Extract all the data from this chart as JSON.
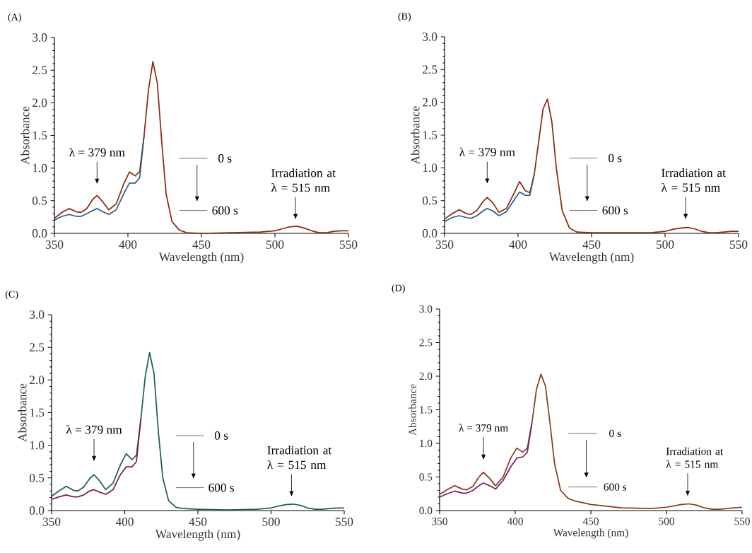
{
  "chart_data": [
    {
      "type": "line",
      "title": "(A)",
      "xlabel": "Wavelength (nm)",
      "ylabel": "Absorbance",
      "x": [
        350,
        355,
        360,
        365,
        368,
        372,
        376,
        379,
        383,
        387,
        392,
        397,
        401,
        405,
        408,
        411,
        414,
        417,
        420,
        423,
        426,
        430,
        435,
        440,
        450,
        470,
        490,
        500,
        505,
        510,
        515,
        520,
        525,
        530,
        535,
        540,
        545,
        550
      ],
      "series": [
        {
          "color": "#8b2a0e",
          "values": [
            0.23,
            0.32,
            0.38,
            0.33,
            0.32,
            0.38,
            0.52,
            0.58,
            0.48,
            0.36,
            0.45,
            0.75,
            0.94,
            0.88,
            0.95,
            1.5,
            2.2,
            2.63,
            2.3,
            1.4,
            0.6,
            0.18,
            0.05,
            0.01,
            0.0,
            0.01,
            0.02,
            0.04,
            0.07,
            0.1,
            0.11,
            0.08,
            0.04,
            0.01,
            0.01,
            0.03,
            0.04,
            0.04
          ]
        },
        {
          "color": "#2e5e7e",
          "values": [
            0.2,
            0.26,
            0.29,
            0.26,
            0.26,
            0.3,
            0.35,
            0.38,
            0.33,
            0.29,
            0.36,
            0.6,
            0.77,
            0.77,
            0.85,
            1.5,
            null,
            null,
            null,
            null,
            null,
            null,
            null,
            null,
            null,
            null,
            null,
            null,
            null,
            null,
            null,
            null,
            null,
            null,
            null,
            null,
            null,
            null
          ]
        }
      ],
      "xlim": [
        350,
        550
      ],
      "ylim": [
        0,
        3
      ],
      "xticks": [
        350,
        400,
        450,
        500,
        550
      ],
      "yticks": [
        {
          "value": 0,
          "label": "0.0"
        },
        {
          "value": 0.5,
          "label": "0.5"
        },
        {
          "value": 1,
          "label": "1.0"
        },
        {
          "value": 1.5,
          "label": "1.5"
        },
        {
          "value": 2,
          "label": "2.0"
        },
        {
          "value": 2.5,
          "label": "2.5"
        },
        {
          "value": 3,
          "label": "3.0"
        }
      ],
      "annotations": [
        "λ = 379 nm",
        "0 s",
        "600 s",
        "Irradiation at λ = 515 nm"
      ]
    },
    {
      "type": "line",
      "title": "(B)",
      "xlabel": "Wavelength (nm)",
      "ylabel": "Absorbance",
      "x": [
        350,
        355,
        360,
        365,
        368,
        372,
        376,
        379,
        383,
        387,
        392,
        397,
        401,
        405,
        408,
        411,
        414,
        417,
        420,
        423,
        426,
        430,
        435,
        440,
        450,
        470,
        490,
        500,
        505,
        510,
        515,
        520,
        525,
        530,
        535,
        540,
        545,
        550
      ],
      "series": [
        {
          "color": "#8b2a0e",
          "values": [
            0.22,
            0.3,
            0.36,
            0.3,
            0.29,
            0.35,
            0.48,
            0.55,
            0.46,
            0.32,
            0.38,
            0.6,
            0.79,
            0.65,
            0.62,
            0.9,
            1.4,
            1.9,
            2.05,
            1.7,
            1.0,
            0.35,
            0.08,
            0.02,
            0.01,
            0.01,
            0.01,
            0.03,
            0.06,
            0.08,
            0.09,
            0.07,
            0.03,
            0.01,
            0.01,
            0.02,
            0.03,
            0.03
          ]
        },
        {
          "color": "#2e5e7e",
          "values": [
            0.18,
            0.24,
            0.27,
            0.24,
            0.23,
            0.27,
            0.34,
            0.38,
            0.34,
            0.27,
            0.33,
            0.5,
            0.63,
            0.58,
            0.58,
            0.9,
            null,
            null,
            null,
            null,
            null,
            null,
            null,
            null,
            null,
            null,
            null,
            null,
            null,
            null,
            null,
            null,
            null,
            null,
            null,
            null,
            null,
            null
          ]
        }
      ],
      "xlim": [
        350,
        550
      ],
      "ylim": [
        0,
        3
      ],
      "xticks": [
        350,
        400,
        450,
        500,
        550
      ],
      "yticks": [
        {
          "value": 0,
          "label": "0.0"
        },
        {
          "value": 0.5,
          "label": "0.5"
        },
        {
          "value": 1,
          "label": "1.0"
        },
        {
          "value": 1.5,
          "label": "1.5"
        },
        {
          "value": 2,
          "label": "2.0"
        },
        {
          "value": 2.5,
          "label": "2.5"
        },
        {
          "value": 3,
          "label": "3.0"
        }
      ],
      "annotations": [
        "λ = 379 nm",
        "0 s",
        "600 s",
        "Irradiation at λ = 515 nm"
      ]
    },
    {
      "type": "line",
      "title": "(C)",
      "xlabel": "Wavelength (nm)",
      "ylabel": "Absorbance",
      "x": [
        350,
        355,
        360,
        365,
        368,
        372,
        376,
        379,
        383,
        387,
        392,
        397,
        401,
        405,
        408,
        411,
        414,
        417,
        420,
        423,
        426,
        430,
        435,
        440,
        450,
        470,
        490,
        500,
        505,
        510,
        515,
        520,
        525,
        530,
        535,
        540,
        545,
        550
      ],
      "series": [
        {
          "color": "#1f5f4f",
          "values": [
            0.22,
            0.3,
            0.37,
            0.31,
            0.3,
            0.36,
            0.49,
            0.55,
            0.45,
            0.32,
            0.42,
            0.7,
            0.87,
            0.78,
            0.85,
            1.4,
            2.05,
            2.42,
            2.1,
            1.2,
            0.5,
            0.15,
            0.05,
            0.03,
            0.02,
            0.01,
            0.02,
            0.04,
            0.07,
            0.09,
            0.1,
            0.08,
            0.04,
            0.02,
            0.02,
            0.03,
            0.04,
            0.04
          ]
        },
        {
          "color": "#7a1f4f",
          "values": [
            0.17,
            0.21,
            0.24,
            0.21,
            0.21,
            0.24,
            0.3,
            0.32,
            0.28,
            0.25,
            0.32,
            0.55,
            0.67,
            0.67,
            0.75,
            1.4,
            null,
            null,
            null,
            null,
            null,
            null,
            null,
            null,
            null,
            null,
            null,
            null,
            null,
            null,
            null,
            null,
            null,
            null,
            null,
            null,
            null,
            null
          ]
        }
      ],
      "xlim": [
        350,
        550
      ],
      "ylim": [
        0,
        3
      ],
      "xticks": [
        350,
        400,
        450,
        500,
        550
      ],
      "yticks": [
        {
          "value": 0,
          "label": "0.0"
        },
        {
          "value": 0.5,
          "label": "0.5"
        },
        {
          "value": 1,
          "label": "1.0"
        },
        {
          "value": 1.5,
          "label": "1.5"
        },
        {
          "value": 2,
          "label": "2.0"
        },
        {
          "value": 2.5,
          "label": "2.5"
        },
        {
          "value": 3,
          "label": "3.0"
        }
      ],
      "annotations": [
        "λ = 379 nm",
        "0 s",
        "600 s",
        "Irradiation at λ = 515 nm"
      ]
    },
    {
      "type": "line",
      "title": "(D)",
      "xlabel": "Wavelength (nm)",
      "ylabel": "Absorbance",
      "x": [
        350,
        355,
        360,
        365,
        368,
        372,
        376,
        379,
        383,
        387,
        392,
        397,
        401,
        405,
        408,
        411,
        414,
        417,
        420,
        423,
        426,
        430,
        435,
        440,
        450,
        470,
        490,
        500,
        505,
        510,
        515,
        520,
        525,
        530,
        535,
        540,
        545,
        550
      ],
      "series": [
        {
          "color": "#8b3a1a",
          "values": [
            0.24,
            0.31,
            0.37,
            0.32,
            0.31,
            0.36,
            0.5,
            0.57,
            0.48,
            0.37,
            0.5,
            0.78,
            0.93,
            0.87,
            0.93,
            1.3,
            1.8,
            2.03,
            1.85,
            1.3,
            0.7,
            0.3,
            0.18,
            0.14,
            0.09,
            0.04,
            0.03,
            0.05,
            0.07,
            0.09,
            0.1,
            0.08,
            0.04,
            0.02,
            0.02,
            0.03,
            0.04,
            0.05
          ]
        },
        {
          "color": "#7a1f5f",
          "values": [
            0.2,
            0.25,
            0.29,
            0.26,
            0.26,
            0.3,
            0.37,
            0.41,
            0.37,
            0.32,
            0.45,
            0.65,
            0.78,
            0.8,
            0.87,
            1.3,
            null,
            null,
            null,
            null,
            null,
            null,
            null,
            null,
            null,
            null,
            null,
            null,
            null,
            null,
            null,
            null,
            null,
            null,
            null,
            null,
            null,
            null
          ]
        }
      ],
      "xlim": [
        350,
        550
      ],
      "ylim": [
        0,
        3
      ],
      "xticks": [
        350,
        400,
        450,
        500,
        550
      ],
      "yticks": [
        {
          "value": 0,
          "label": "0.0"
        },
        {
          "value": 0.5,
          "label": "0.5"
        },
        {
          "value": 1,
          "label": "1.0"
        },
        {
          "value": 1.5,
          "label": "1.5"
        },
        {
          "value": 2,
          "label": "2.0"
        },
        {
          "value": 2.5,
          "label": "2.5"
        },
        {
          "value": 3,
          "label": "3.0"
        }
      ],
      "annotations": [
        "λ = 379 nm",
        "0 s",
        "600 s",
        "Irradiation at λ = 515 nm"
      ]
    }
  ]
}
